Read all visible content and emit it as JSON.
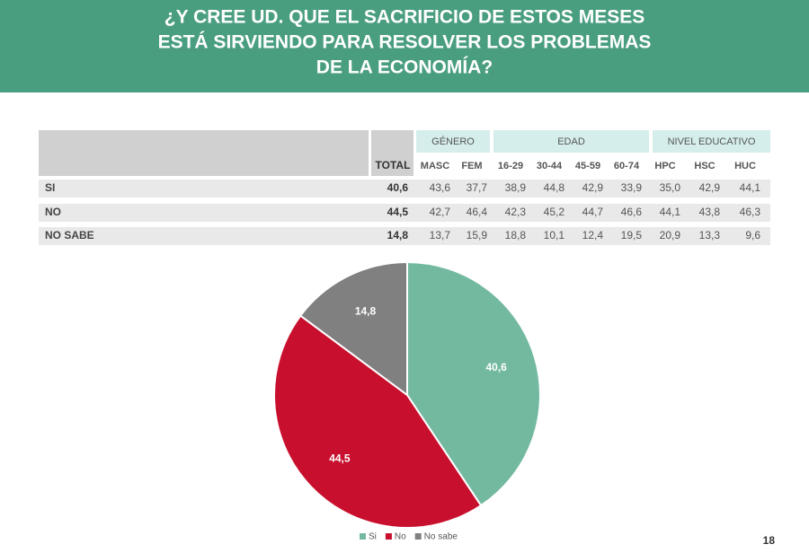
{
  "header": {
    "title": [
      "¿Y CREE UD. QUE EL SACRIFICIO DE ESTOS MESES",
      "ESTÁ SIRVIENDO PARA RESOLVER LOS PROBLEMAS",
      "DE LA ECONOMÍA?"
    ]
  },
  "table": {
    "groups": [
      "GÉNERO",
      "EDAD",
      "NIVEL EDUCATIVO"
    ],
    "columns": [
      "TOTAL",
      "MASC",
      "FEM",
      "16-29",
      "30-44",
      "45-59",
      "60-74",
      "HPC",
      "HSC",
      "HUC"
    ],
    "rows": [
      {
        "label": "SI",
        "cells": [
          "40,6",
          "43,6",
          "37,7",
          "38,9",
          "44,8",
          "42,9",
          "33,9",
          "35,0",
          "42,9",
          "44,1"
        ]
      },
      {
        "label": "NO",
        "cells": [
          "44,5",
          "42,7",
          "46,4",
          "42,3",
          "45,2",
          "44,7",
          "46,6",
          "44,1",
          "43,8",
          "46,3"
        ]
      },
      {
        "label": "NO SABE",
        "cells": [
          "14,8",
          "13,7",
          "15,9",
          "18,8",
          "10,1",
          "12,4",
          "19,5",
          "20,9",
          "13,3",
          "9,6"
        ]
      }
    ]
  },
  "chart_data": {
    "type": "pie",
    "categories": [
      "Si",
      "No",
      "No sabe"
    ],
    "values": [
      40.6,
      44.5,
      14.8
    ],
    "value_labels": [
      "40,6",
      "44,5",
      "14,8"
    ],
    "colors": [
      "#73b9a0",
      "#c8102e",
      "#808080"
    ],
    "legend": "bottom"
  },
  "page_number": "18"
}
